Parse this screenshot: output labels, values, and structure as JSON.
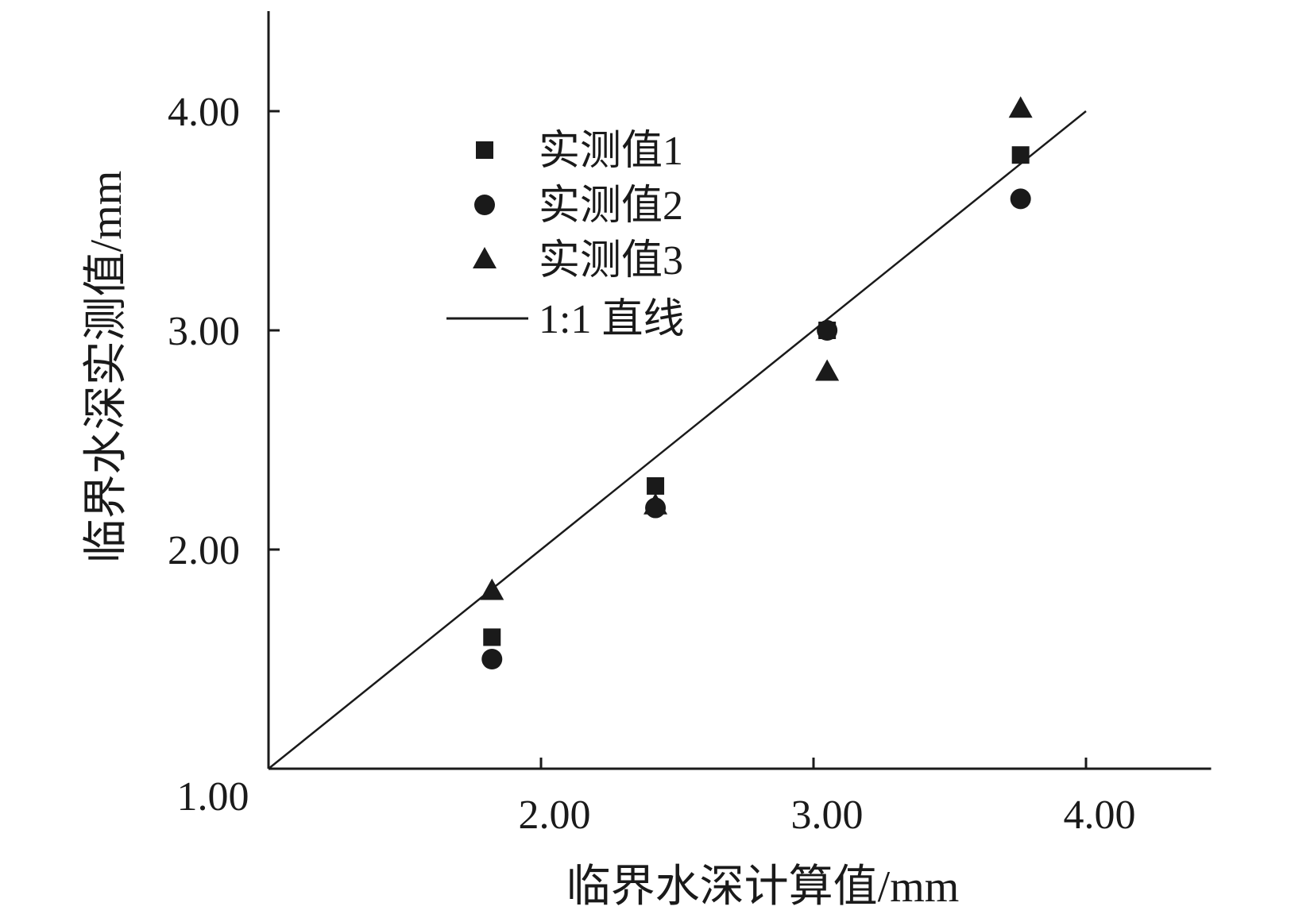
{
  "chart_data": {
    "type": "scatter",
    "xlabel": "临界水深计算值/mm",
    "ylabel": "临界水深实测值/mm",
    "xlim": [
      1.0,
      4.5
    ],
    "ylim": [
      1.0,
      4.5
    ],
    "origin_label": "1.00",
    "x_ticks": [
      {
        "value": 2.0,
        "label": "2.00"
      },
      {
        "value": 3.0,
        "label": "3.00"
      },
      {
        "value": 4.0,
        "label": "4.00"
      }
    ],
    "y_ticks": [
      {
        "value": 2.0,
        "label": "2.00"
      },
      {
        "value": 3.0,
        "label": "3.00"
      },
      {
        "value": 4.0,
        "label": "4.00"
      }
    ],
    "grid": false,
    "legend_position": "top-left",
    "series": [
      {
        "name": "实测值1",
        "marker": "square",
        "color": "#1a1a1a",
        "points": [
          [
            1.82,
            1.6
          ],
          [
            2.42,
            2.29
          ],
          [
            3.05,
            3.0
          ],
          [
            3.76,
            3.8
          ]
        ]
      },
      {
        "name": "实测值2",
        "marker": "circle",
        "color": "#1a1a1a",
        "points": [
          [
            1.82,
            1.5
          ],
          [
            2.42,
            2.19
          ],
          [
            3.05,
            3.0
          ],
          [
            3.76,
            3.6
          ]
        ]
      },
      {
        "name": "实测值3",
        "marker": "triangle",
        "color": "#1a1a1a",
        "points": [
          [
            1.82,
            1.81
          ],
          [
            2.42,
            2.2
          ],
          [
            3.05,
            2.81
          ],
          [
            3.76,
            4.01
          ]
        ]
      }
    ],
    "reference_line": {
      "name": "1:1 直线",
      "from": [
        1.0,
        1.0
      ],
      "to": [
        4.0,
        4.0
      ],
      "color": "#1a1a1a"
    }
  }
}
